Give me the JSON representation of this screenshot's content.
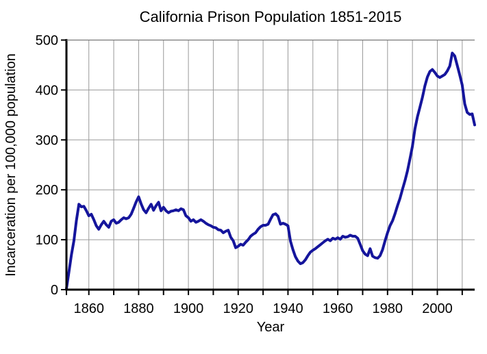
{
  "page": {
    "background": "#ffffff"
  },
  "chart_data": {
    "type": "line",
    "title": "California Prison Population 1851-2015",
    "xlabel": "Year",
    "ylabel": "Incarceration per 100,000 population",
    "xlim": [
      1851,
      2015
    ],
    "ylim": [
      0,
      500
    ],
    "x_tick_labels": [
      1860,
      1880,
      1900,
      1920,
      1940,
      1960,
      1980,
      2000
    ],
    "x_gridlines": [
      1860,
      1870,
      1880,
      1890,
      1900,
      1910,
      1920,
      1930,
      1940,
      1950,
      1960,
      1970,
      1980,
      1990,
      2000,
      2010
    ],
    "y_ticks": [
      0,
      100,
      200,
      300,
      400,
      500
    ],
    "grid": true,
    "legend_position": "none",
    "line_color": "#15159c",
    "grid_color": "#999999",
    "axis_color": "#000000",
    "series": [
      {
        "name": "Incarceration per 100,000 population",
        "x_years": {
          "start": 1851,
          "end": 2015,
          "step": 1
        },
        "values": [
          2,
          35,
          70,
          98,
          138,
          171,
          166,
          167,
          158,
          148,
          151,
          140,
          128,
          121,
          130,
          137,
          130,
          125,
          137,
          140,
          133,
          135,
          140,
          144,
          142,
          144,
          151,
          163,
          176,
          186,
          172,
          160,
          154,
          163,
          171,
          159,
          168,
          175,
          158,
          165,
          158,
          154,
          157,
          158,
          160,
          158,
          162,
          160,
          148,
          144,
          137,
          140,
          135,
          137,
          140,
          137,
          133,
          130,
          128,
          125,
          124,
          120,
          119,
          114,
          117,
          119,
          105,
          98,
          84,
          87,
          91,
          89,
          95,
          100,
          107,
          111,
          114,
          121,
          126,
          129,
          129,
          131,
          141,
          150,
          152,
          147,
          131,
          133,
          131,
          128,
          97,
          80,
          66,
          57,
          52,
          54,
          60,
          68,
          75,
          79,
          82,
          86,
          90,
          94,
          98,
          101,
          98,
          103,
          101,
          104,
          101,
          107,
          105,
          106,
          109,
          107,
          107,
          103,
          91,
          78,
          71,
          68,
          82,
          67,
          64,
          63,
          68,
          80,
          98,
          114,
          128,
          138,
          152,
          168,
          183,
          201,
          218,
          238,
          262,
          287,
          322,
          346,
          365,
          385,
          408,
          426,
          437,
          441,
          435,
          428,
          425,
          428,
          431,
          438,
          448,
          474,
          468,
          449,
          430,
          410,
          372,
          355,
          351,
          352,
          330
        ]
      }
    ]
  }
}
